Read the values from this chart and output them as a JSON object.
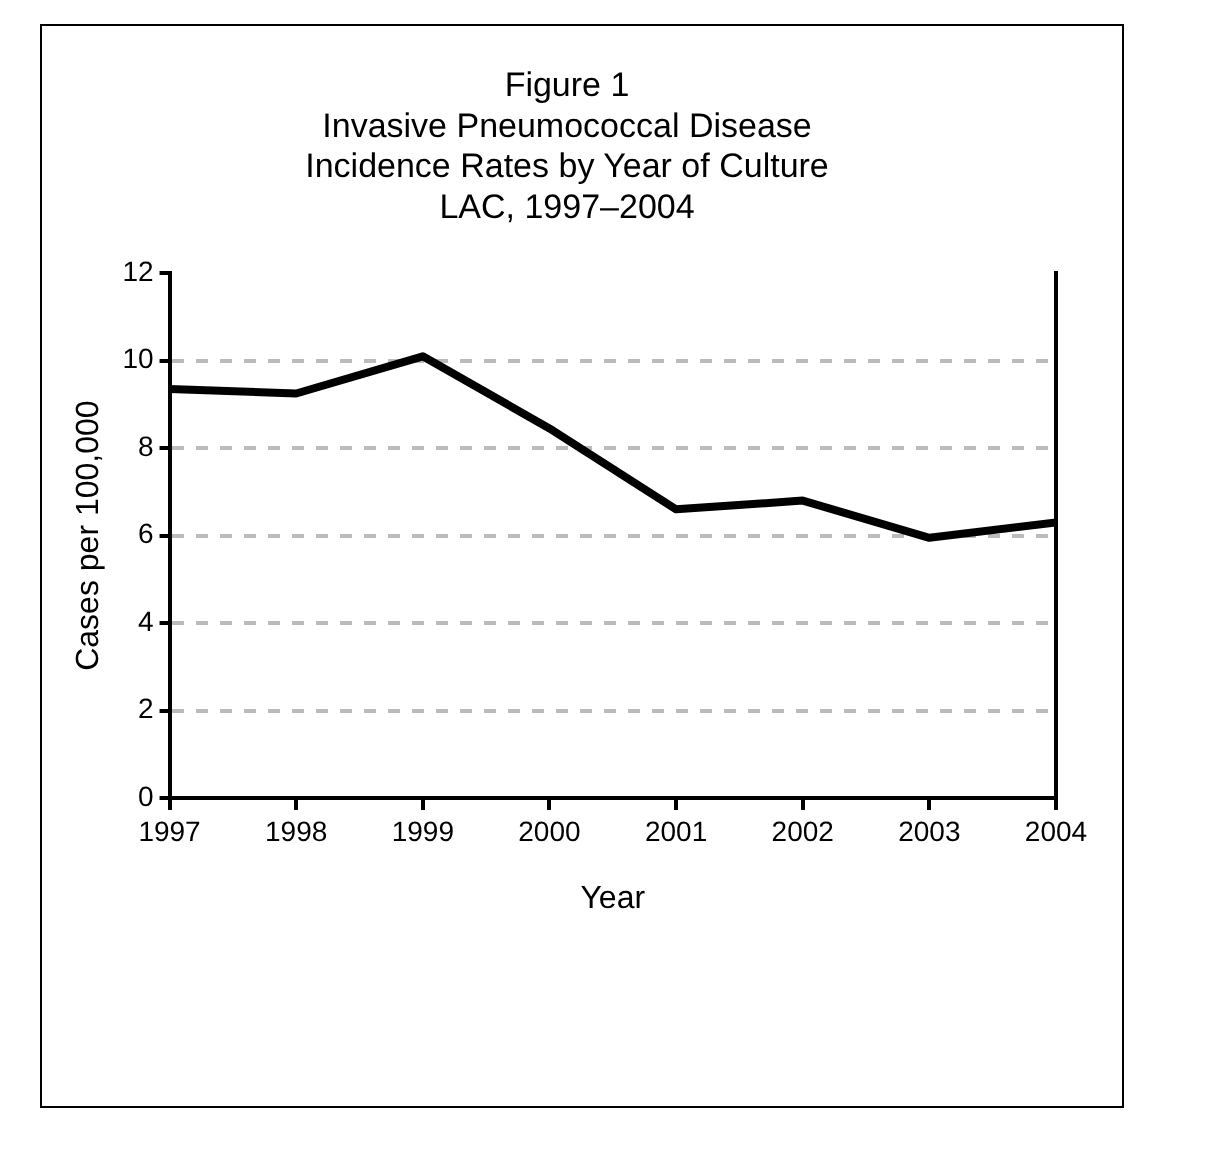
{
  "chart_data": {
    "type": "line",
    "title": "Figure 1\nInvasive Pneumococcal Disease\nIncidence Rates by Year of Culture\nLAC, 1997–2004",
    "xlabel": "Year",
    "ylabel": "Cases per 100,000",
    "x": [
      1997,
      1998,
      1999,
      2000,
      2001,
      2002,
      2003,
      2004
    ],
    "series": [
      {
        "color": "#000000",
        "values": [
          9.35,
          9.25,
          10.1,
          8.45,
          6.6,
          6.8,
          5.95,
          6.3
        ]
      }
    ],
    "xlim": [
      1997,
      2004
    ],
    "xticks": [
      1997,
      1998,
      1999,
      2000,
      2001,
      2002,
      2003,
      2004
    ],
    "ylim": [
      0,
      12
    ],
    "yticks": [
      0,
      2,
      4,
      6,
      8,
      10,
      12
    ],
    "grid": "y",
    "legend": false,
    "marker": "none",
    "line_style": "solid"
  }
}
